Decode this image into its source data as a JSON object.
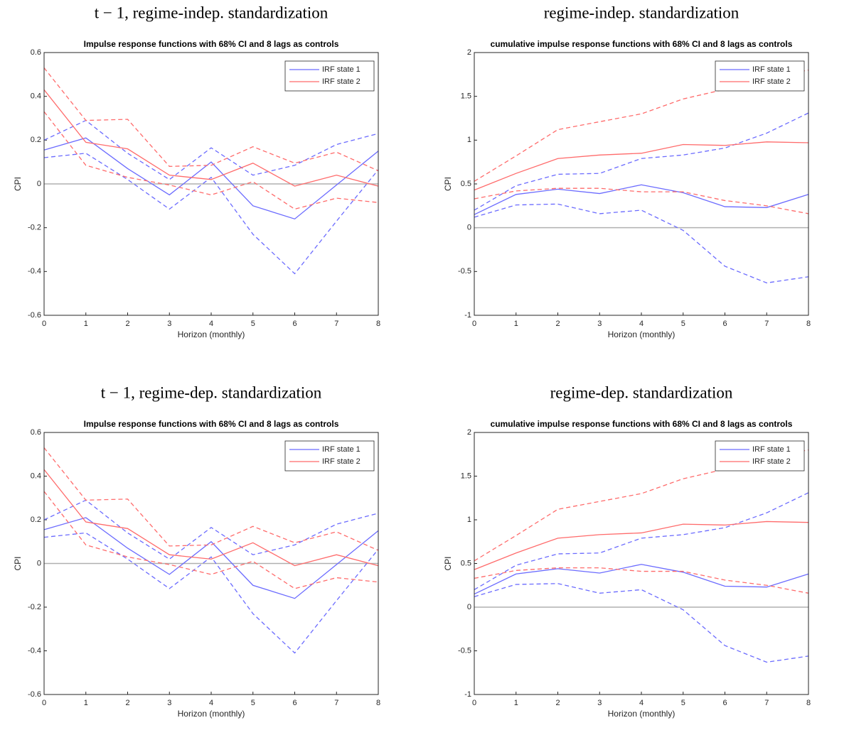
{
  "chart_data": [
    {
      "type": "line",
      "caption": "t − 1, regime-indep. standardization",
      "title": "Impulse response functions with 68% CI and 8 lags as controls",
      "xlabel": "Horizon (monthly)",
      "ylabel": "CPI",
      "x": [
        0,
        1,
        2,
        3,
        4,
        5,
        6,
        7,
        8
      ],
      "xlim": [
        0,
        8
      ],
      "xticks": [
        0,
        1,
        2,
        3,
        4,
        5,
        6,
        7,
        8
      ],
      "ylim": [
        -0.6,
        0.6
      ],
      "yticks": [
        -0.6,
        -0.4,
        -0.2,
        0,
        0.2,
        0.4,
        0.6
      ],
      "legend": "upper right",
      "series": [
        {
          "name": "IRF state 1",
          "color": "#6b6bff",
          "values": [
            0.155,
            0.21,
            0.07,
            -0.05,
            0.1,
            -0.1,
            -0.16,
            -0.005,
            0.15
          ],
          "upper": [
            0.2,
            0.29,
            0.14,
            0.02,
            0.165,
            0.04,
            0.085,
            0.18,
            0.23
          ],
          "lower": [
            0.12,
            0.14,
            0.02,
            -0.115,
            0.03,
            -0.23,
            -0.41,
            -0.17,
            0.065
          ]
        },
        {
          "name": "IRF state 2",
          "color": "#ff6b6b",
          "values": [
            0.43,
            0.19,
            0.16,
            0.04,
            0.02,
            0.095,
            -0.01,
            0.04,
            -0.01
          ],
          "upper": [
            0.53,
            0.29,
            0.295,
            0.08,
            0.085,
            0.17,
            0.095,
            0.145,
            0.06
          ],
          "lower": [
            0.33,
            0.085,
            0.03,
            -0.005,
            -0.05,
            0.01,
            -0.115,
            -0.065,
            -0.085
          ]
        }
      ]
    },
    {
      "type": "line",
      "caption": "regime-indep. standardization",
      "title": "cumulative impulse response functions with 68% CI and 8 lags as controls",
      "xlabel": "Horizon (monthly)",
      "ylabel": "CPI",
      "x": [
        0,
        1,
        2,
        3,
        4,
        5,
        6,
        7,
        8
      ],
      "xlim": [
        0,
        8
      ],
      "xticks": [
        0,
        1,
        2,
        3,
        4,
        5,
        6,
        7,
        8
      ],
      "ylim": [
        -1,
        2
      ],
      "yticks": [
        -1,
        -0.5,
        0,
        0.5,
        1,
        1.5,
        2
      ],
      "legend": "upper right",
      "series": [
        {
          "name": "IRF state 1",
          "color": "#6b6bff",
          "values": [
            0.15,
            0.38,
            0.44,
            0.39,
            0.49,
            0.4,
            0.24,
            0.23,
            0.38
          ],
          "upper": [
            0.2,
            0.48,
            0.61,
            0.62,
            0.79,
            0.83,
            0.91,
            1.08,
            1.31
          ],
          "lower": [
            0.12,
            0.26,
            0.27,
            0.16,
            0.2,
            -0.03,
            -0.44,
            -0.63,
            -0.56
          ]
        },
        {
          "name": "IRF state 2",
          "color": "#ff6b6b",
          "values": [
            0.43,
            0.62,
            0.79,
            0.83,
            0.85,
            0.95,
            0.94,
            0.98,
            0.97
          ],
          "upper": [
            0.53,
            0.82,
            1.12,
            1.21,
            1.3,
            1.47,
            1.58,
            1.71,
            1.8
          ],
          "lower": [
            0.33,
            0.42,
            0.45,
            0.45,
            0.41,
            0.41,
            0.31,
            0.25,
            0.16
          ]
        }
      ]
    },
    {
      "type": "line",
      "caption": "t − 1, regime-dep. standardization",
      "title": "Impulse response functions with 68% CI and 8 lags as controls",
      "xlabel": "Horizon (monthly)",
      "ylabel": "CPI",
      "x": [
        0,
        1,
        2,
        3,
        4,
        5,
        6,
        7,
        8
      ],
      "xlim": [
        0,
        8
      ],
      "xticks": [
        0,
        1,
        2,
        3,
        4,
        5,
        6,
        7,
        8
      ],
      "ylim": [
        -0.6,
        0.6
      ],
      "yticks": [
        -0.6,
        -0.4,
        -0.2,
        0,
        0.2,
        0.4,
        0.6
      ],
      "legend": "upper right",
      "series": [
        {
          "name": "IRF state 1",
          "color": "#6b6bff",
          "values": [
            0.155,
            0.21,
            0.07,
            -0.05,
            0.1,
            -0.1,
            -0.16,
            -0.005,
            0.15
          ],
          "upper": [
            0.2,
            0.29,
            0.14,
            0.02,
            0.165,
            0.04,
            0.085,
            0.18,
            0.23
          ],
          "lower": [
            0.12,
            0.14,
            0.02,
            -0.115,
            0.03,
            -0.23,
            -0.41,
            -0.17,
            0.065
          ]
        },
        {
          "name": "IRF state 2",
          "color": "#ff6b6b",
          "values": [
            0.43,
            0.19,
            0.16,
            0.04,
            0.02,
            0.095,
            -0.01,
            0.04,
            -0.01
          ],
          "upper": [
            0.53,
            0.29,
            0.295,
            0.08,
            0.085,
            0.17,
            0.095,
            0.145,
            0.06
          ],
          "lower": [
            0.33,
            0.085,
            0.03,
            -0.005,
            -0.05,
            0.01,
            -0.115,
            -0.065,
            -0.085
          ]
        }
      ]
    },
    {
      "type": "line",
      "caption": "regime-dep. standardization",
      "title": "cumulative impulse response functions with 68% CI and 8 lags as controls",
      "xlabel": "Horizon (monthly)",
      "ylabel": "CPI",
      "x": [
        0,
        1,
        2,
        3,
        4,
        5,
        6,
        7,
        8
      ],
      "xlim": [
        0,
        8
      ],
      "xticks": [
        0,
        1,
        2,
        3,
        4,
        5,
        6,
        7,
        8
      ],
      "ylim": [
        -1,
        2
      ],
      "yticks": [
        -1,
        -0.5,
        0,
        0.5,
        1,
        1.5,
        2
      ],
      "legend": "upper right",
      "series": [
        {
          "name": "IRF state 1",
          "color": "#6b6bff",
          "values": [
            0.15,
            0.38,
            0.44,
            0.39,
            0.49,
            0.4,
            0.24,
            0.23,
            0.38
          ],
          "upper": [
            0.2,
            0.48,
            0.61,
            0.62,
            0.79,
            0.83,
            0.91,
            1.08,
            1.31
          ],
          "lower": [
            0.12,
            0.26,
            0.27,
            0.16,
            0.2,
            -0.03,
            -0.44,
            -0.63,
            -0.56
          ]
        },
        {
          "name": "IRF state 2",
          "color": "#ff6b6b",
          "values": [
            0.43,
            0.62,
            0.79,
            0.83,
            0.85,
            0.95,
            0.94,
            0.98,
            0.97
          ],
          "upper": [
            0.53,
            0.82,
            1.12,
            1.21,
            1.3,
            1.47,
            1.58,
            1.71,
            1.8
          ],
          "lower": [
            0.33,
            0.42,
            0.45,
            0.45,
            0.41,
            0.41,
            0.31,
            0.25,
            0.16
          ]
        }
      ]
    }
  ]
}
